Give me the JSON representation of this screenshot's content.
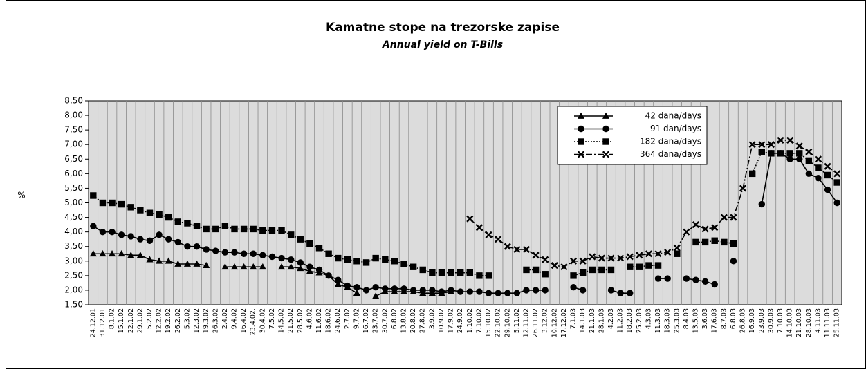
{
  "chart_data": {
    "type": "line",
    "title": "Kamatne stope na trezorske zapise",
    "subtitle": "Annual yield on T-Bills",
    "y_label": "%",
    "categories": [
      "24.12.01",
      "31.12.01",
      "8.1.02",
      "15.1.02",
      "22.1.02",
      "29.1.02",
      "5.2.02",
      "12.2.02",
      "19.2.02",
      "26.2.02",
      "5.3.02",
      "12.3.02",
      "19.3.02",
      "26.3.02",
      "2.4.02",
      "9.4.02",
      "16.4.02",
      "23.4.02.",
      "30.4.02",
      "7.5.02",
      "14.5.02",
      "21.5.02",
      "28.5.02",
      "4.6.02",
      "11.6.02",
      "18.6.02",
      "24.6.02",
      "2.7.02",
      "9.7.02",
      "16.7.02",
      "23.7.02",
      "30.7.02",
      "6.8.02",
      "13.8.02",
      "20.8.02",
      "27.8.02",
      "3.9.02",
      "10.9.02",
      "17.9.02",
      "24.9.02",
      "1.10.02",
      "7.10.02",
      "15.10.02",
      "22.10.02",
      "29.10.02",
      "5.11.02",
      "12.11.02",
      "26.11.02",
      "3.12.02",
      "10.12.02",
      "17.12.02",
      "7.1.03",
      "14.1.03",
      "21.1.03",
      "28.1.03",
      "4.2.03",
      "11.2.03",
      "18.2.03",
      "25.2.03",
      "4.3.03",
      "11.3.03",
      "18.3.03",
      "25.3.03",
      "8.4.03",
      "13.5.03",
      "3.6.03",
      "17.6.03",
      "8.7.03",
      "6.8.03",
      "26.8.03",
      "16.9.03",
      "23.9.03",
      "30.9.03",
      "7.10.03",
      "14.10.03",
      "21.10.03",
      "28.10.03",
      "4.11.03",
      "11.11.03",
      "25.11.03"
    ],
    "series": [
      {
        "name": "42 dana/days",
        "color": "#000000",
        "marker": "triangle",
        "dash": "solid",
        "values": [
          3.25,
          3.25,
          3.25,
          3.25,
          3.2,
          3.2,
          3.05,
          3.0,
          3.0,
          2.9,
          2.9,
          2.9,
          2.85,
          null,
          2.8,
          2.8,
          2.8,
          2.8,
          2.8,
          null,
          2.8,
          2.8,
          2.75,
          2.65,
          2.6,
          2.5,
          2.2,
          2.1,
          1.9,
          null,
          1.8,
          1.95,
          1.95,
          1.95,
          1.95,
          1.9,
          1.9,
          1.9,
          1.95,
          null,
          null,
          null,
          null,
          null,
          null,
          null,
          null,
          null,
          null,
          null,
          null,
          null,
          null,
          null,
          null,
          null,
          null,
          null,
          null,
          null,
          null,
          null,
          null,
          null,
          null,
          null,
          null,
          null,
          null,
          null,
          null,
          null,
          null,
          null,
          null,
          null,
          null,
          null,
          null,
          null
        ]
      },
      {
        "name": "91 dan/days",
        "color": "#000000",
        "marker": "circle",
        "dash": "solid",
        "values": [
          4.2,
          4.0,
          4.0,
          3.9,
          3.85,
          3.75,
          3.7,
          3.9,
          3.75,
          3.65,
          3.5,
          3.5,
          3.4,
          3.35,
          3.3,
          3.3,
          3.25,
          3.25,
          3.2,
          3.15,
          3.1,
          3.05,
          2.95,
          2.8,
          2.7,
          2.5,
          2.35,
          2.15,
          2.1,
          2.0,
          2.1,
          2.05,
          2.05,
          2.05,
          2.0,
          2.0,
          2.0,
          1.95,
          2.0,
          1.95,
          1.95,
          1.95,
          1.9,
          1.9,
          1.9,
          1.9,
          2.0,
          2.0,
          2.0,
          null,
          null,
          2.1,
          2.0,
          null,
          null,
          2.0,
          1.9,
          1.9,
          null,
          null,
          2.4,
          2.4,
          null,
          2.4,
          2.35,
          2.3,
          2.2,
          null,
          3.0,
          null,
          null,
          4.95,
          6.7,
          6.7,
          6.5,
          6.5,
          6.0,
          5.85,
          5.45,
          5.0
        ]
      },
      {
        "name": "182 dana/days",
        "color": "#000000",
        "marker": "square",
        "dash": "dotted",
        "values": [
          5.25,
          5.0,
          5.0,
          4.95,
          4.85,
          4.75,
          4.65,
          4.6,
          4.5,
          4.35,
          4.3,
          4.2,
          4.1,
          4.1,
          4.2,
          4.1,
          4.1,
          4.1,
          4.05,
          4.05,
          4.05,
          3.9,
          3.75,
          3.6,
          3.45,
          3.25,
          3.1,
          3.05,
          3.0,
          2.95,
          3.1,
          3.05,
          3.0,
          2.9,
          2.8,
          2.7,
          2.6,
          2.6,
          2.6,
          2.6,
          2.6,
          2.5,
          2.5,
          null,
          null,
          null,
          2.7,
          2.7,
          2.55,
          null,
          null,
          2.5,
          2.6,
          2.7,
          2.7,
          2.7,
          null,
          2.8,
          2.8,
          2.85,
          2.85,
          null,
          3.25,
          null,
          3.65,
          3.65,
          3.7,
          3.65,
          3.6,
          null,
          6.0,
          6.75,
          6.7,
          6.7,
          6.7,
          6.7,
          6.45,
          6.2,
          5.95,
          5.7
        ]
      },
      {
        "name": "364 dana/days",
        "color": "#000000",
        "marker": "cross",
        "dash": "dashdot",
        "values": [
          null,
          null,
          null,
          null,
          null,
          null,
          null,
          null,
          null,
          null,
          null,
          null,
          null,
          null,
          null,
          null,
          null,
          null,
          null,
          null,
          null,
          null,
          null,
          null,
          null,
          null,
          null,
          null,
          null,
          null,
          null,
          null,
          null,
          null,
          null,
          null,
          null,
          null,
          null,
          null,
          4.45,
          4.15,
          3.9,
          3.75,
          3.5,
          3.4,
          3.4,
          3.2,
          3.05,
          2.85,
          2.8,
          3.0,
          3.0,
          3.15,
          3.1,
          3.1,
          3.1,
          3.15,
          3.2,
          3.25,
          3.25,
          3.3,
          3.45,
          4.0,
          4.25,
          4.1,
          4.15,
          4.5,
          4.5,
          5.5,
          7.0,
          7.0,
          7.0,
          7.15,
          7.15,
          6.95,
          6.75,
          6.5,
          6.25,
          6.0
        ]
      }
    ],
    "ylim": [
      1.5,
      8.5
    ],
    "yticks": [
      {
        "value": 1.5,
        "label": "1,50"
      },
      {
        "value": 2,
        "label": "2,00"
      },
      {
        "value": 2.5,
        "label": "2,50"
      },
      {
        "value": 3,
        "label": "3,00"
      },
      {
        "value": 3.5,
        "label": "3,50"
      },
      {
        "value": 4,
        "label": "4,00"
      },
      {
        "value": 4.5,
        "label": "4,50"
      },
      {
        "value": 5,
        "label": "5,00"
      },
      {
        "value": 5.5,
        "label": "5,50"
      },
      {
        "value": 6,
        "label": "6,00"
      },
      {
        "value": 6.5,
        "label": "6,50"
      },
      {
        "value": 7,
        "label": "7,00"
      },
      {
        "value": 7.5,
        "label": "7,50"
      },
      {
        "value": 8,
        "label": "8,00"
      },
      {
        "value": 8.5,
        "label": "8,50"
      }
    ],
    "grid": true
  }
}
